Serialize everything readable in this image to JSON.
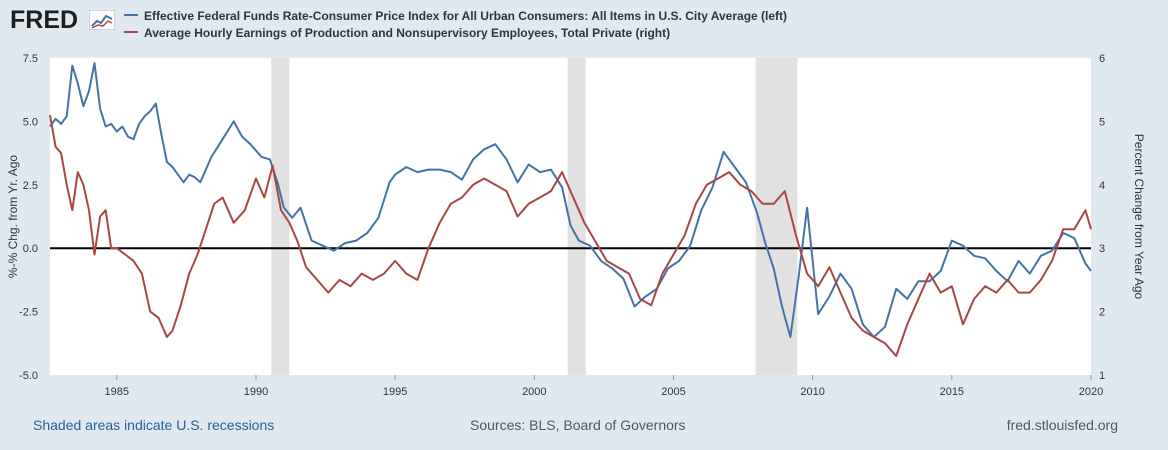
{
  "brand": {
    "name": "FRED"
  },
  "legend": [
    {
      "label": "Effective Federal Funds Rate-Consumer Price Index for All Urban Consumers: All Items in U.S. City Average (left)",
      "color": "#4572a7"
    },
    {
      "label": "Average Hourly Earnings of Production and Nonsupervisory Employees, Total Private (right)",
      "color": "#aa4643"
    }
  ],
  "footer": {
    "recession_note": "Shaded areas indicate U.S. recessions",
    "sources": "Sources: BLS, Board of Governors",
    "url": "fred.stlouisfed.org"
  },
  "chart_data": {
    "type": "line",
    "title": "",
    "xlabel": "",
    "ylabel": "%-% Chg. from Yr. Ago",
    "ylabel_right": "Percent Change from Year Ago",
    "xlim": [
      1982.6,
      2020.0
    ],
    "ylim": [
      -5.0,
      7.5
    ],
    "ylim_right": [
      1,
      6
    ],
    "x_ticks": [
      1985,
      1990,
      1995,
      2000,
      2005,
      2010,
      2015,
      2020
    ],
    "y_ticks": [
      "7.5",
      "5.0",
      "2.5",
      "0.0",
      "-2.5",
      "-5.0"
    ],
    "y_ticks_values": [
      7.5,
      5.0,
      2.5,
      0.0,
      -2.5,
      -5.0
    ],
    "y_ticks_right": [
      "6",
      "5",
      "4",
      "3",
      "2",
      "1"
    ],
    "y_ticks_right_values": [
      6,
      5,
      4,
      3,
      2,
      1
    ],
    "zero_line": 0,
    "recessions": [
      [
        1990.55,
        1991.2
      ],
      [
        2001.2,
        2001.85
      ],
      [
        2007.95,
        2009.45
      ]
    ],
    "series": [
      {
        "name": "Effective Federal Funds Rate-Consumer Price Index for All Urban Consumers: All Items in U.S. City Average (left)",
        "axis": "left",
        "color": "#4572a7",
        "x": [
          1982.6,
          1982.8,
          1983.0,
          1983.2,
          1983.4,
          1983.6,
          1983.8,
          1984.0,
          1984.2,
          1984.4,
          1984.6,
          1984.8,
          1985.0,
          1985.2,
          1985.4,
          1985.6,
          1985.8,
          1986.0,
          1986.2,
          1986.4,
          1986.6,
          1986.8,
          1987.0,
          1987.2,
          1987.4,
          1987.6,
          1987.8,
          1988.0,
          1988.4,
          1988.8,
          1989.2,
          1989.5,
          1989.8,
          1990.2,
          1990.5,
          1990.8,
          1991.0,
          1991.3,
          1991.6,
          1992.0,
          1992.4,
          1992.8,
          1993.2,
          1993.6,
          1994.0,
          1994.4,
          1994.8,
          1995.0,
          1995.4,
          1995.8,
          1996.2,
          1996.6,
          1997.0,
          1997.4,
          1997.8,
          1998.2,
          1998.6,
          1999.0,
          1999.4,
          1999.8,
          2000.2,
          2000.6,
          2001.0,
          2001.3,
          2001.6,
          2002.0,
          2002.4,
          2002.8,
          2003.2,
          2003.6,
          2004.0,
          2004.4,
          2004.8,
          2005.2,
          2005.6,
          2006.0,
          2006.4,
          2006.8,
          2007.2,
          2007.6,
          2008.0,
          2008.3,
          2008.6,
          2008.9,
          2009.2,
          2009.5,
          2009.8,
          2010.2,
          2010.6,
          2011.0,
          2011.4,
          2011.8,
          2012.2,
          2012.6,
          2013.0,
          2013.4,
          2013.8,
          2014.2,
          2014.6,
          2015.0,
          2015.4,
          2015.8,
          2016.2,
          2016.6,
          2017.0,
          2017.4,
          2017.8,
          2018.2,
          2018.6,
          2019.0,
          2019.4,
          2019.8,
          2020.0
        ],
        "values": [
          4.8,
          5.1,
          4.9,
          5.2,
          7.2,
          6.5,
          5.6,
          6.2,
          7.3,
          5.5,
          4.8,
          4.9,
          4.6,
          4.8,
          4.4,
          4.3,
          4.9,
          5.2,
          5.4,
          5.7,
          4.5,
          3.4,
          3.2,
          2.9,
          2.6,
          2.9,
          2.8,
          2.6,
          3.6,
          4.3,
          5.0,
          4.4,
          4.1,
          3.6,
          3.5,
          2.5,
          1.6,
          1.2,
          1.6,
          0.3,
          0.1,
          -0.1,
          0.2,
          0.3,
          0.6,
          1.2,
          2.6,
          2.9,
          3.2,
          3.0,
          3.1,
          3.1,
          3.0,
          2.7,
          3.5,
          3.9,
          4.1,
          3.5,
          2.6,
          3.3,
          3.0,
          3.1,
          2.4,
          0.9,
          0.3,
          0.1,
          -0.5,
          -0.8,
          -1.2,
          -2.3,
          -1.9,
          -1.6,
          -0.8,
          -0.5,
          0.1,
          1.5,
          2.4,
          3.8,
          3.2,
          2.6,
          1.4,
          0.2,
          -0.8,
          -2.3,
          -3.5,
          -1.1,
          1.6,
          -2.6,
          -1.9,
          -1.0,
          -1.6,
          -3.0,
          -3.5,
          -3.1,
          -1.6,
          -2.0,
          -1.3,
          -1.3,
          -0.9,
          0.3,
          0.1,
          -0.3,
          -0.4,
          -0.9,
          -1.3,
          -0.5,
          -1.0,
          -0.3,
          -0.1,
          0.6,
          0.4,
          -0.6,
          -0.9
        ]
      },
      {
        "name": "Average Hourly Earnings of Production and Nonsupervisory Employees, Total Private (right)",
        "axis": "right",
        "color": "#aa4643",
        "x": [
          1982.6,
          1982.8,
          1983.0,
          1983.2,
          1983.4,
          1983.6,
          1983.8,
          1984.0,
          1984.2,
          1984.4,
          1984.6,
          1984.8,
          1985.0,
          1985.3,
          1985.6,
          1985.9,
          1986.2,
          1986.5,
          1986.8,
          1987.0,
          1987.3,
          1987.6,
          1987.9,
          1988.2,
          1988.5,
          1988.8,
          1989.2,
          1989.6,
          1990.0,
          1990.3,
          1990.6,
          1990.9,
          1991.2,
          1991.5,
          1991.8,
          1992.2,
          1992.6,
          1993.0,
          1993.4,
          1993.8,
          1994.2,
          1994.6,
          1995.0,
          1995.4,
          1995.8,
          1996.2,
          1996.6,
          1997.0,
          1997.4,
          1997.8,
          1998.2,
          1998.6,
          1999.0,
          1999.4,
          1999.8,
          2000.2,
          2000.6,
          2001.0,
          2001.4,
          2001.8,
          2002.2,
          2002.6,
          2003.0,
          2003.4,
          2003.8,
          2004.2,
          2004.6,
          2005.0,
          2005.4,
          2005.8,
          2006.2,
          2006.6,
          2007.0,
          2007.4,
          2007.8,
          2008.2,
          2008.6,
          2009.0,
          2009.4,
          2009.8,
          2010.2,
          2010.6,
          2011.0,
          2011.4,
          2011.8,
          2012.2,
          2012.6,
          2013.0,
          2013.4,
          2013.8,
          2014.2,
          2014.6,
          2015.0,
          2015.4,
          2015.8,
          2016.2,
          2016.6,
          2017.0,
          2017.4,
          2017.8,
          2018.2,
          2018.6,
          2019.0,
          2019.4,
          2019.8,
          2020.0
        ],
        "values": [
          5.1,
          4.6,
          4.5,
          4.0,
          3.6,
          4.2,
          4.0,
          3.6,
          2.9,
          3.5,
          3.6,
          3.0,
          3.0,
          2.9,
          2.8,
          2.6,
          2.0,
          1.9,
          1.6,
          1.7,
          2.1,
          2.6,
          2.9,
          3.3,
          3.7,
          3.8,
          3.4,
          3.6,
          4.1,
          3.8,
          4.3,
          3.6,
          3.4,
          3.1,
          2.7,
          2.5,
          2.3,
          2.5,
          2.4,
          2.6,
          2.5,
          2.6,
          2.8,
          2.6,
          2.5,
          3.0,
          3.4,
          3.7,
          3.8,
          4.0,
          4.1,
          4.0,
          3.9,
          3.5,
          3.7,
          3.8,
          3.9,
          4.2,
          3.8,
          3.4,
          3.1,
          2.8,
          2.7,
          2.6,
          2.2,
          2.1,
          2.6,
          2.9,
          3.2,
          3.7,
          4.0,
          4.1,
          4.2,
          4.0,
          3.9,
          3.7,
          3.7,
          3.9,
          3.2,
          2.6,
          2.4,
          2.7,
          2.3,
          1.9,
          1.7,
          1.6,
          1.5,
          1.3,
          1.8,
          2.2,
          2.6,
          2.3,
          2.4,
          1.8,
          2.2,
          2.4,
          2.3,
          2.5,
          2.3,
          2.3,
          2.5,
          2.8,
          3.3,
          3.3,
          3.6,
          3.3
        ]
      }
    ]
  }
}
